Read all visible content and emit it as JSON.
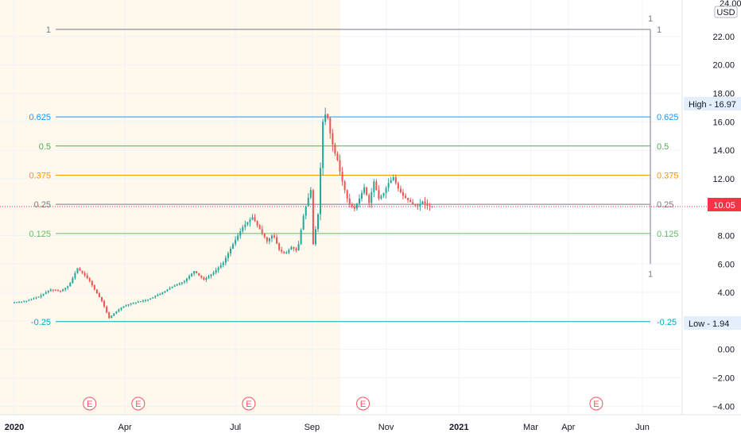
{
  "chart_data": {
    "type": "candlestick",
    "price_axis": {
      "currency": "USD",
      "top_label": "24.00",
      "ticks": [
        "22.00",
        "20.00",
        "18.00",
        "16.00",
        "14.00",
        "12.00",
        "10.00",
        "8.00",
        "6.00",
        "4.00",
        "2.00",
        "0.00",
        "−2.00",
        "−4.00"
      ],
      "tick_values": [
        22,
        20,
        18,
        16,
        14,
        12,
        10,
        8,
        6,
        4,
        2,
        0,
        -2,
        -4
      ],
      "ylim": [
        -4.6,
        24.4
      ]
    },
    "time_axis": {
      "ticks": [
        "2020",
        "Apr",
        "Jul",
        "Sep",
        "Nov",
        "2021",
        "Mar",
        "Apr",
        "Jun"
      ],
      "tick_days": [
        0,
        91,
        182,
        245,
        306,
        366,
        425,
        456,
        517
      ],
      "bold": [
        "2020",
        "2021"
      ]
    },
    "current_price": "10.05",
    "high_label": "High - 16.97",
    "low_label": "Low - 1.94",
    "high_value": 16.97,
    "low_value": 1.94,
    "fib_levels": [
      {
        "label": "1",
        "value": 22.5,
        "color": "#787b86"
      },
      {
        "label": "0.625",
        "value": 16.35,
        "color": "#2196f3"
      },
      {
        "label": "0.5",
        "value": 14.3,
        "color": "#4caf50"
      },
      {
        "label": "0.375",
        "value": 12.25,
        "color": "#ff9800"
      },
      {
        "label": "0.25",
        "value": 10.2,
        "color": "#787b86"
      },
      {
        "label": "0.125",
        "value": 8.15,
        "color": "#66bb6a"
      },
      {
        "label": "-0.25",
        "value": 1.95,
        "color": "#00acc1"
      }
    ],
    "fib_lower_right_label": "1",
    "earnings_marker_label": "E",
    "earnings_days": [
      62,
      102,
      193,
      287,
      479
    ],
    "price_series_days": [
      0,
      10,
      20,
      30,
      38,
      45,
      52,
      58,
      62,
      66,
      72,
      78,
      83,
      89,
      95,
      100,
      110,
      120,
      130,
      140,
      148,
      156,
      164,
      172,
      180,
      188,
      196,
      203,
      208,
      213,
      218,
      223,
      228,
      233,
      238,
      241,
      244,
      246,
      250,
      254,
      257,
      260,
      263,
      266,
      268,
      270,
      272,
      274,
      276,
      280,
      284,
      288,
      292,
      296,
      300,
      304,
      308,
      312,
      316,
      320,
      324,
      328,
      332,
      336,
      340,
      344
    ],
    "price_series_values": [
      3.3,
      3.4,
      3.7,
      4.2,
      4.1,
      4.5,
      5.7,
      5.2,
      4.8,
      4.2,
      3.4,
      2.2,
      2.6,
      3.0,
      3.2,
      3.3,
      3.5,
      3.9,
      4.4,
      4.8,
      5.5,
      4.9,
      5.4,
      6.1,
      7.4,
      8.6,
      9.3,
      8.3,
      7.6,
      8.1,
      7.0,
      6.7,
      7.2,
      6.9,
      9.4,
      10.4,
      11.2,
      7.4,
      9.5,
      16.0,
      16.8,
      15.2,
      14.0,
      13.3,
      12.5,
      11.8,
      11.2,
      10.6,
      10.2,
      9.9,
      10.6,
      11.4,
      10.3,
      11.8,
      10.6,
      11.0,
      11.7,
      12.1,
      11.3,
      10.8,
      10.5,
      10.2,
      10.05,
      10.4,
      10.1,
      10.05
    ]
  }
}
